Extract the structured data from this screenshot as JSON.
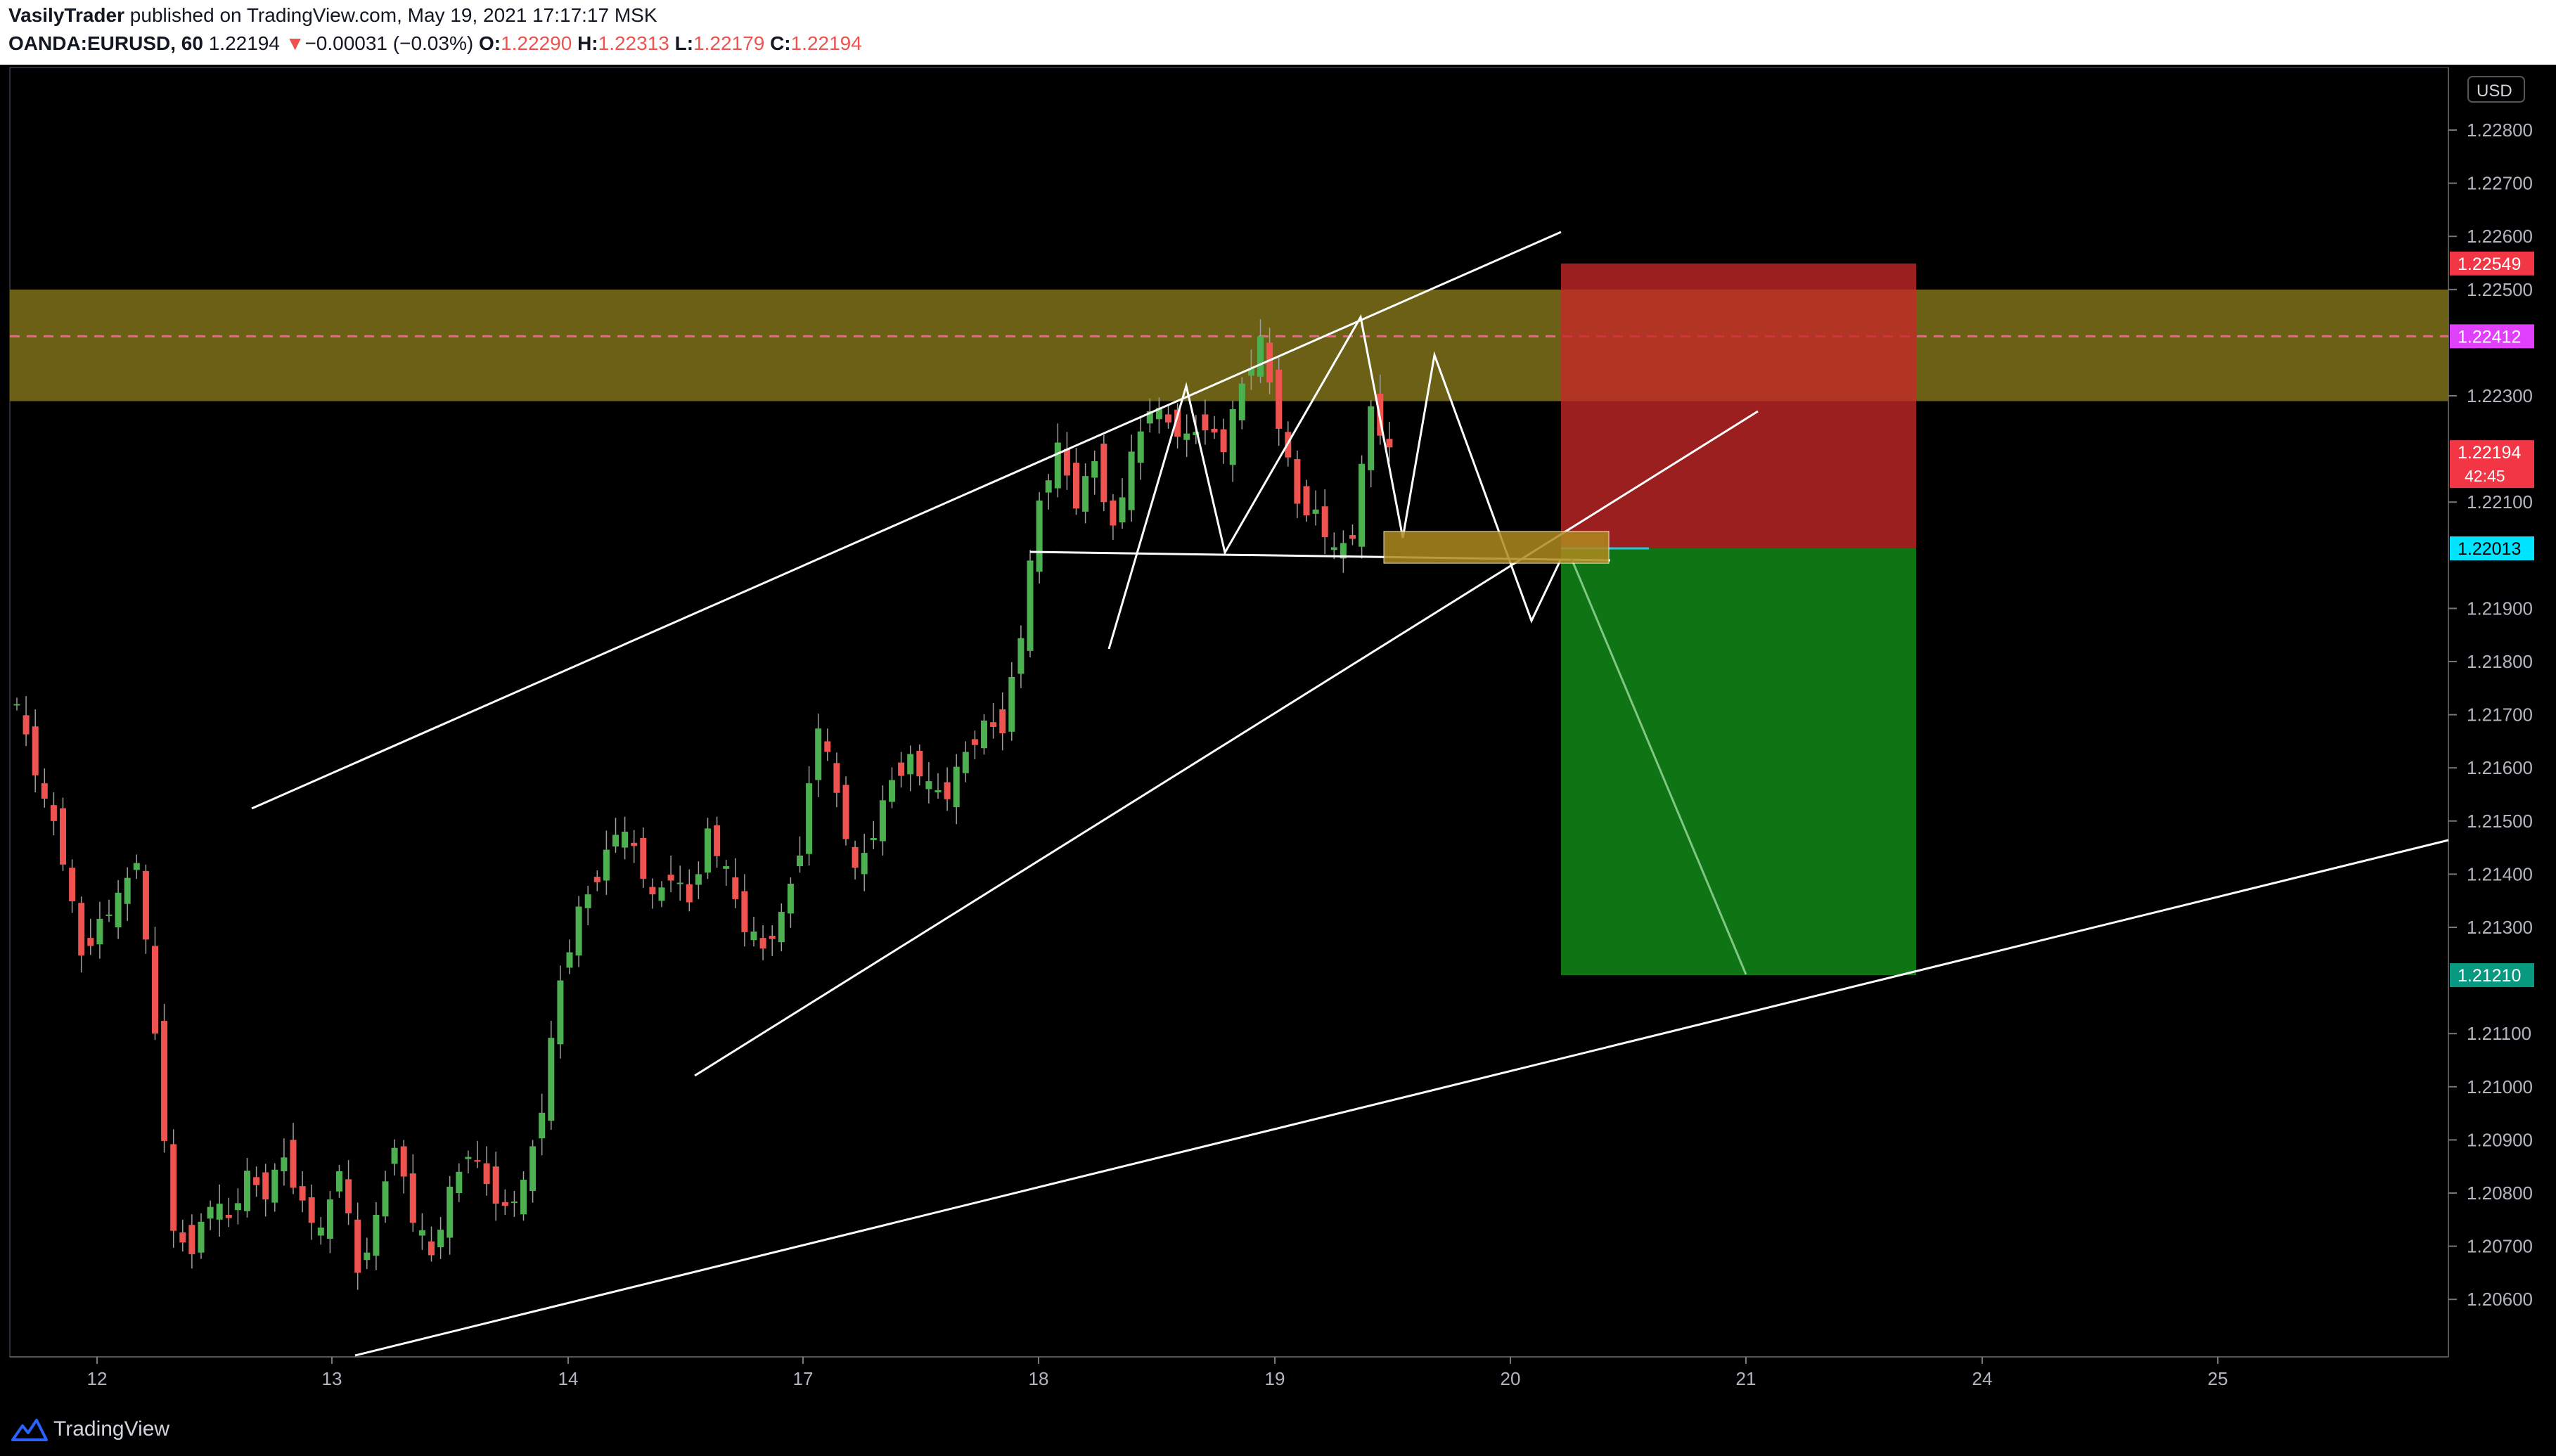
{
  "header": {
    "author": "VasilyTrader",
    "published_text": "published on TradingView.com, May 19, 2021 17:17:17 MSK",
    "symbol": "OANDA:EURUSD, 60",
    "last": "1.22194",
    "change_arrow": "▼",
    "change": "−0.00031 (−0.03%)",
    "o_label": "O:",
    "o_value": "1.22290",
    "h_label": "H:",
    "h_value": "1.22313",
    "l_label": "L:",
    "l_value": "1.22179",
    "c_label": "C:",
    "c_value": "1.22194"
  },
  "footer": {
    "brand": "TradingView"
  },
  "colors": {
    "up": "#26a69a",
    "up_candle": "#4caf50",
    "down_candle": "#ef5350",
    "zone": "#7c7020",
    "stop_zone": "#b71c1c",
    "target_zone": "#1b8a1b",
    "axis_text": "#b2b5be",
    "price_current": "#f23645",
    "price_magenta": "#e040fb",
    "price_cyan": "#00e5ff",
    "price_green": "#089981"
  },
  "chart_data": {
    "type": "candlestick",
    "instrument": "OANDA:EURUSD",
    "timeframe": "60",
    "currency_label": "USD",
    "y_ticks": [
      "1.22800",
      "1.22700",
      "1.22600",
      "1.22500",
      "1.22300",
      "1.22100",
      "1.21900",
      "1.21800",
      "1.21700",
      "1.21600",
      "1.21500",
      "1.21400",
      "1.21300",
      "1.21100",
      "1.21000",
      "1.20900",
      "1.20800",
      "1.20700",
      "1.20600"
    ],
    "y_top_partial": "1",
    "x_ticks": [
      "12",
      "13",
      "14",
      "17",
      "18",
      "19",
      "20",
      "21",
      "24",
      "25"
    ],
    "price_labels": [
      {
        "name": "stop-loss",
        "text": "1.22549",
        "bg": "#f23645"
      },
      {
        "name": "resistance-mid",
        "text": "1.22412",
        "bg": "#e040fb"
      },
      {
        "name": "current-price",
        "text": "1.22194",
        "bg": "#f23645",
        "countdown": "42:45"
      },
      {
        "name": "entry",
        "text": "1.22013",
        "bg": "#00e5ff"
      },
      {
        "name": "take-profit",
        "text": "1.21210",
        "bg": "#089981"
      }
    ],
    "zones": {
      "resistance": [
        1.2229,
        1.225
      ],
      "stop": [
        1.22013,
        1.22549
      ],
      "target": [
        1.2121,
        1.22013
      ],
      "entry_box": [
        1.21985,
        1.22045
      ]
    },
    "candle_path": [
      [
        0,
        1.2175
      ],
      [
        2,
        1.2166
      ],
      [
        4,
        1.2153
      ],
      [
        5,
        1.215
      ],
      [
        6,
        1.2143
      ],
      [
        8,
        1.2125
      ],
      [
        10,
        1.2131
      ],
      [
        12,
        1.2135
      ],
      [
        14,
        1.2143
      ],
      [
        16,
        1.211
      ],
      [
        18,
        1.2072
      ],
      [
        20,
        1.207
      ],
      [
        22,
        1.2078
      ],
      [
        24,
        1.2075
      ],
      [
        26,
        1.2083
      ],
      [
        28,
        1.208
      ],
      [
        30,
        1.2087
      ],
      [
        32,
        1.2078
      ],
      [
        34,
        1.2072
      ],
      [
        36,
        1.2085
      ],
      [
        38,
        1.2065
      ],
      [
        40,
        1.2075
      ],
      [
        42,
        1.209
      ],
      [
        44,
        1.2075
      ],
      [
        46,
        1.2068
      ],
      [
        48,
        1.208
      ],
      [
        50,
        1.2088
      ],
      [
        52,
        1.2082
      ],
      [
        54,
        1.2077
      ],
      [
        56,
        1.2081
      ],
      [
        58,
        1.2096
      ],
      [
        60,
        1.212
      ],
      [
        62,
        1.2133
      ],
      [
        64,
        1.214
      ],
      [
        66,
        1.2148
      ],
      [
        68,
        1.2145
      ],
      [
        70,
        1.2135
      ],
      [
        72,
        1.214
      ],
      [
        74,
        1.2135
      ],
      [
        76,
        1.2148
      ],
      [
        78,
        1.214
      ],
      [
        80,
        1.213
      ],
      [
        82,
        1.2126
      ],
      [
        84,
        1.2132
      ],
      [
        86,
        1.2145
      ],
      [
        88,
        1.2168
      ],
      [
        90,
        1.2155
      ],
      [
        92,
        1.214
      ],
      [
        94,
        1.2148
      ],
      [
        96,
        1.2158
      ],
      [
        98,
        1.2162
      ],
      [
        100,
        1.2156
      ],
      [
        102,
        1.2155
      ],
      [
        104,
        1.2163
      ],
      [
        106,
        1.2168
      ],
      [
        108,
        1.2168
      ],
      [
        110,
        1.2185
      ],
      [
        112,
        1.221
      ],
      [
        114,
        1.222
      ],
      [
        116,
        1.221
      ],
      [
        118,
        1.2218
      ],
      [
        120,
        1.2205
      ],
      [
        122,
        1.2218
      ],
      [
        124,
        1.2228
      ],
      [
        126,
        1.2225
      ],
      [
        128,
        1.2222
      ],
      [
        130,
        1.2225
      ],
      [
        132,
        1.222
      ],
      [
        134,
        1.2232
      ],
      [
        136,
        1.224
      ],
      [
        138,
        1.2225
      ],
      [
        140,
        1.221
      ],
      [
        142,
        1.2208
      ],
      [
        144,
        1.22
      ],
      [
        146,
        1.2204
      ],
      [
        148,
        1.2228
      ],
      [
        150,
        1.22194
      ]
    ]
  }
}
